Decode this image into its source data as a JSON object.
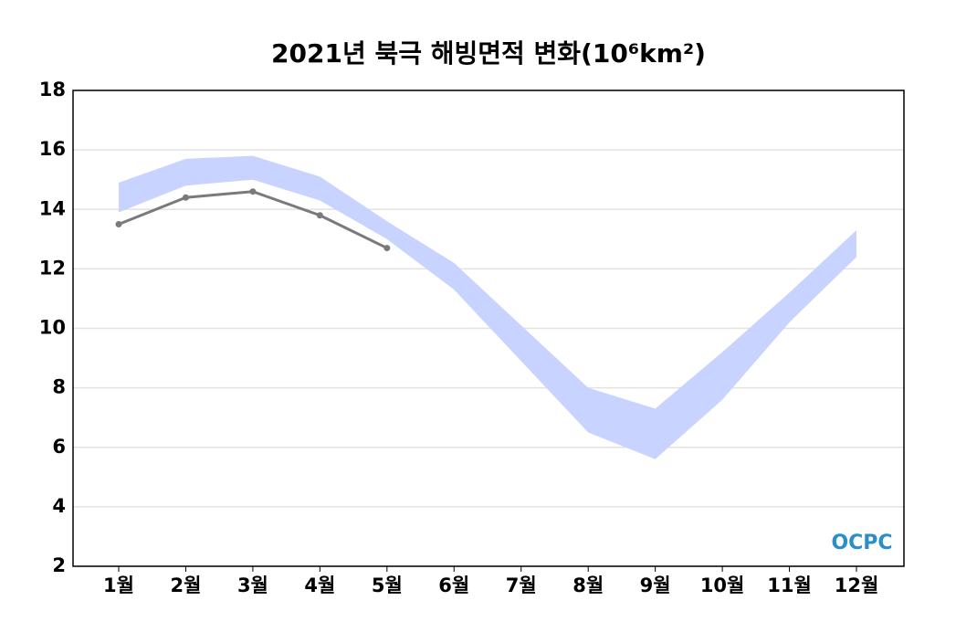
{
  "chart_data": {
    "type": "line",
    "title": "2021년 북극 해빙면적 변화(10⁶km²)",
    "categories": [
      "1월",
      "2월",
      "3월",
      "4월",
      "5월",
      "6월",
      "7월",
      "8월",
      "9월",
      "10월",
      "11월",
      "12월"
    ],
    "band": {
      "color": "#c8d4ff",
      "upper": [
        14.9,
        15.7,
        15.8,
        15.1,
        13.6,
        12.2,
        10.1,
        8.0,
        7.3,
        9.2,
        11.2,
        13.3
      ],
      "lower": [
        13.9,
        14.8,
        15.0,
        14.3,
        13.0,
        11.3,
        8.9,
        6.5,
        5.6,
        7.6,
        10.2,
        12.4
      ]
    },
    "series": [
      {
        "color": "#7a7a7a",
        "values": [
          13.5,
          14.4,
          14.6,
          13.8,
          12.7,
          null,
          null,
          null,
          null,
          null,
          null,
          null
        ]
      }
    ],
    "ylim": [
      2,
      18
    ],
    "yticks": [
      2,
      4,
      6,
      8,
      10,
      12,
      14,
      16,
      18
    ],
    "grid": true,
    "watermark": "OCPC"
  }
}
